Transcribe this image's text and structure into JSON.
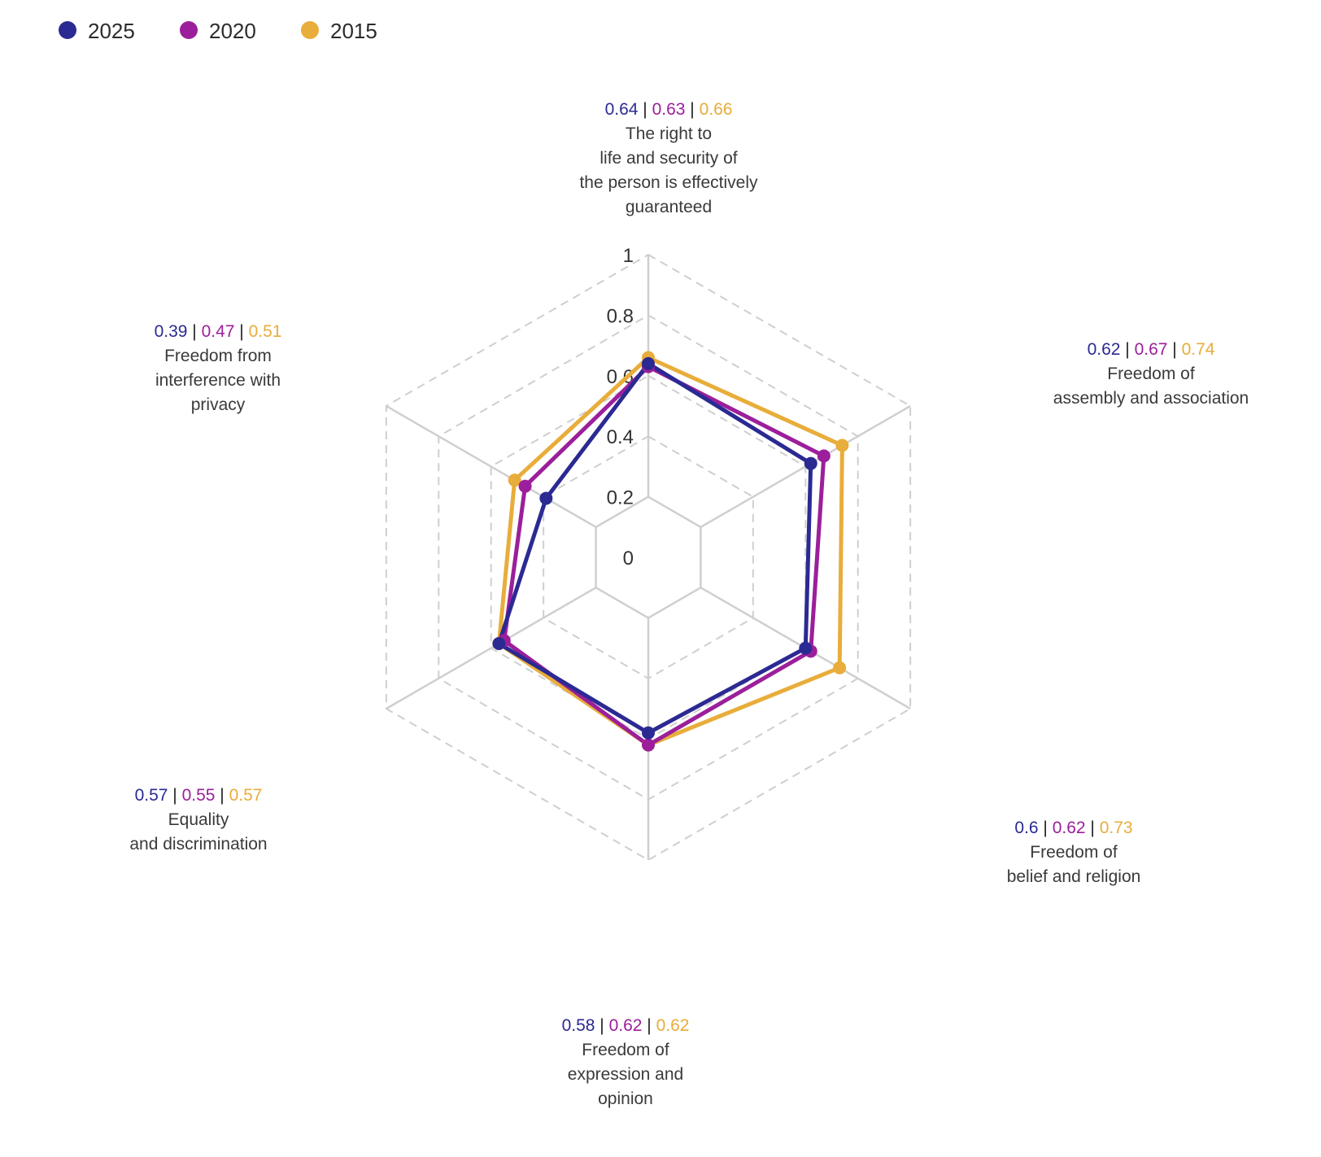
{
  "chart_data": {
    "type": "radar",
    "title": "",
    "legend_position": "top-left",
    "grid": true,
    "rlim": [
      0,
      1
    ],
    "ticks": [
      "0",
      "0.2",
      "0.4",
      "0.6",
      "0.8",
      "1"
    ],
    "tick_values": [
      0,
      0.2,
      0.4,
      0.6,
      0.8,
      1
    ],
    "categories": [
      {
        "label_lines": [
          "The right to",
          "life and security of",
          "the person is effectively",
          "guaranteed"
        ]
      },
      {
        "label_lines": [
          "Freedom of",
          "assembly and association"
        ]
      },
      {
        "label_lines": [
          "Freedom of",
          "belief and religion"
        ]
      },
      {
        "label_lines": [
          "Freedom of",
          "expression and",
          "opinion"
        ]
      },
      {
        "label_lines": [
          "Equality",
          "and discrimination"
        ]
      },
      {
        "label_lines": [
          "Freedom from",
          "interference with",
          "privacy"
        ]
      }
    ],
    "value_texts": [
      [
        "0.64",
        "0.63",
        "0.66"
      ],
      [
        "0.62",
        "0.67",
        "0.74"
      ],
      [
        "0.6",
        "0.62",
        "0.73"
      ],
      [
        "0.58",
        "0.62",
        "0.62"
      ],
      [
        "0.57",
        "0.55",
        "0.57"
      ],
      [
        "0.39",
        "0.47",
        "0.51"
      ]
    ],
    "separator": "|",
    "series": [
      {
        "name": "2025",
        "color": "#2b2a93",
        "values": [
          0.64,
          0.62,
          0.6,
          0.58,
          0.57,
          0.39
        ]
      },
      {
        "name": "2020",
        "color": "#9b1f9b",
        "values": [
          0.63,
          0.67,
          0.62,
          0.62,
          0.55,
          0.47
        ]
      },
      {
        "name": "2015",
        "color": "#e8ad3a",
        "values": [
          0.66,
          0.74,
          0.73,
          0.62,
          0.57,
          0.51
        ]
      }
    ]
  }
}
